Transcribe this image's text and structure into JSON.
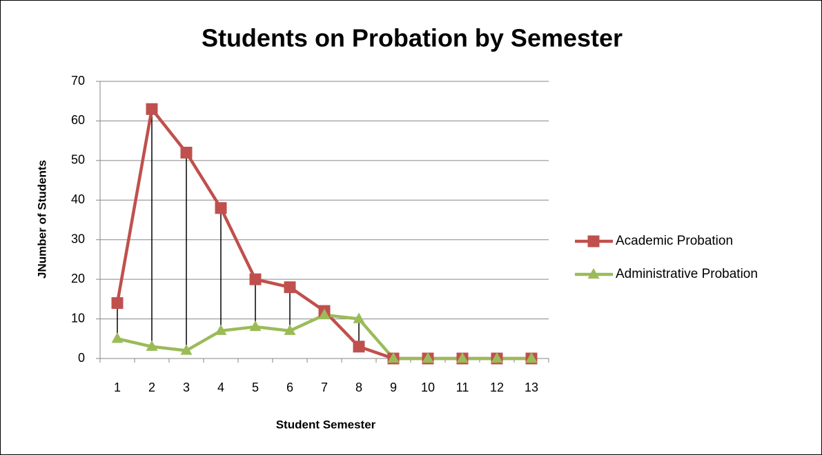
{
  "chart_data": {
    "type": "line",
    "title": "Students on Probation by Semester",
    "x_label": "Student Semester",
    "y_label": "JNumber of Students",
    "categories": [
      "1",
      "2",
      "3",
      "4",
      "5",
      "6",
      "7",
      "8",
      "9",
      "10",
      "11",
      "12",
      "13"
    ],
    "series": [
      {
        "name": "Academic Probation",
        "color": "#c0504d",
        "marker": "square",
        "values": [
          14,
          63,
          52,
          38,
          20,
          18,
          12,
          3,
          0,
          0,
          0,
          0,
          0
        ]
      },
      {
        "name": "Administrative Probation",
        "color": "#9bbb59",
        "marker": "triangle",
        "values": [
          5,
          3,
          2,
          7,
          8,
          7,
          11,
          10,
          0,
          0,
          0,
          0,
          0
        ]
      }
    ],
    "ylim": [
      0,
      70
    ],
    "yticks": [
      0,
      10,
      20,
      30,
      40,
      50,
      60,
      70
    ],
    "grid": true,
    "high_low_lines": true,
    "legend": "right"
  }
}
